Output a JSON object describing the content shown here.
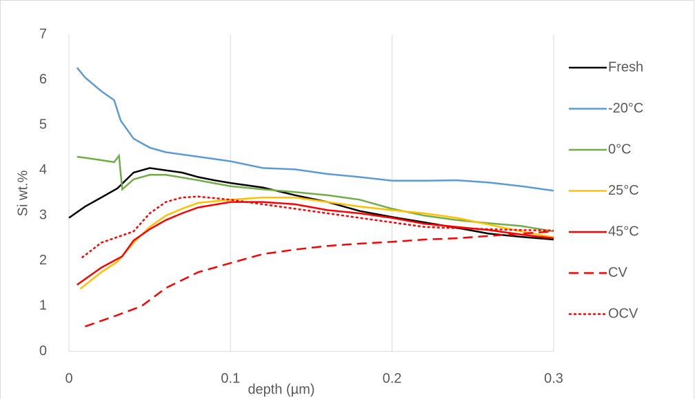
{
  "chart_data": {
    "type": "line",
    "x_label": "depth (µm)",
    "y_label": "Si wt.%",
    "xlim": [
      0,
      0.3
    ],
    "xticks": [
      0,
      0.1,
      0.2,
      0.3
    ],
    "ylim": [
      0,
      7
    ],
    "yticks": [
      0,
      1,
      2,
      3,
      4,
      5,
      6,
      7
    ],
    "grid": "x",
    "legend": "right",
    "series": [
      {
        "name": "Fresh",
        "color": "#000000",
        "dash": "solid",
        "x": [
          0,
          0.01,
          0.02,
          0.03,
          0.04,
          0.05,
          0.06,
          0.07,
          0.08,
          0.09,
          0.1,
          0.12,
          0.14,
          0.16,
          0.18,
          0.2,
          0.22,
          0.24,
          0.26,
          0.28,
          0.3
        ],
        "values": [
          2.95,
          3.2,
          3.4,
          3.6,
          3.95,
          4.05,
          4.0,
          3.95,
          3.85,
          3.78,
          3.72,
          3.62,
          3.45,
          3.3,
          3.1,
          2.97,
          2.85,
          2.73,
          2.6,
          2.53,
          2.47
        ]
      },
      {
        "name": "-20°C",
        "color": "#5b9bd5",
        "dash": "solid",
        "x": [
          0.005,
          0.01,
          0.02,
          0.028,
          0.032,
          0.04,
          0.05,
          0.06,
          0.08,
          0.1,
          0.12,
          0.14,
          0.16,
          0.18,
          0.2,
          0.22,
          0.24,
          0.26,
          0.28,
          0.3
        ],
        "values": [
          6.27,
          6.05,
          5.75,
          5.55,
          5.1,
          4.7,
          4.5,
          4.4,
          4.3,
          4.2,
          4.05,
          4.02,
          3.92,
          3.85,
          3.77,
          3.77,
          3.78,
          3.73,
          3.65,
          3.55
        ]
      },
      {
        "name": "0°C",
        "color": "#70ad47",
        "dash": "solid",
        "x": [
          0.005,
          0.015,
          0.028,
          0.031,
          0.033,
          0.04,
          0.05,
          0.06,
          0.08,
          0.1,
          0.12,
          0.14,
          0.16,
          0.18,
          0.2,
          0.22,
          0.24,
          0.26,
          0.28,
          0.3
        ],
        "values": [
          4.3,
          4.25,
          4.18,
          4.32,
          3.58,
          3.8,
          3.9,
          3.9,
          3.78,
          3.65,
          3.58,
          3.52,
          3.45,
          3.35,
          3.15,
          3.0,
          2.9,
          2.83,
          2.77,
          2.65
        ]
      },
      {
        "name": "25°C",
        "color": "#ffc000",
        "dash": "solid",
        "x": [
          0.007,
          0.02,
          0.03,
          0.04,
          0.05,
          0.06,
          0.07,
          0.08,
          0.1,
          0.12,
          0.14,
          0.16,
          0.18,
          0.2,
          0.22,
          0.24,
          0.26,
          0.28,
          0.3
        ],
        "values": [
          1.38,
          1.75,
          1.98,
          2.4,
          2.75,
          3.0,
          3.15,
          3.28,
          3.35,
          3.4,
          3.4,
          3.3,
          3.2,
          3.12,
          3.05,
          2.95,
          2.8,
          2.65,
          2.52
        ]
      },
      {
        "name": "45°C",
        "color": "#ff0000",
        "dash": "solid",
        "x": [
          0.005,
          0.02,
          0.033,
          0.04,
          0.05,
          0.06,
          0.07,
          0.08,
          0.1,
          0.12,
          0.14,
          0.16,
          0.18,
          0.2,
          0.22,
          0.24,
          0.26,
          0.28,
          0.3
        ],
        "values": [
          1.47,
          1.85,
          2.1,
          2.45,
          2.7,
          2.9,
          3.05,
          3.18,
          3.3,
          3.3,
          3.25,
          3.12,
          3.05,
          2.95,
          2.82,
          2.75,
          2.68,
          2.58,
          2.5
        ]
      },
      {
        "name": "CV",
        "color": "#ff0000",
        "dash": "dash",
        "x": [
          0.01,
          0.03,
          0.045,
          0.06,
          0.08,
          0.1,
          0.12,
          0.14,
          0.16,
          0.18,
          0.2,
          0.22,
          0.24,
          0.26,
          0.28,
          0.3
        ],
        "values": [
          0.55,
          0.8,
          1.0,
          1.4,
          1.75,
          1.95,
          2.15,
          2.25,
          2.33,
          2.38,
          2.42,
          2.47,
          2.5,
          2.55,
          2.6,
          2.65
        ]
      },
      {
        "name": "OCV",
        "color": "#ff0000",
        "dash": "dot",
        "x": [
          0.008,
          0.02,
          0.04,
          0.05,
          0.06,
          0.07,
          0.08,
          0.1,
          0.12,
          0.14,
          0.16,
          0.18,
          0.2,
          0.22,
          0.24,
          0.26,
          0.28,
          0.3
        ],
        "values": [
          2.07,
          2.4,
          2.65,
          3.05,
          3.3,
          3.4,
          3.42,
          3.35,
          3.25,
          3.15,
          3.05,
          2.95,
          2.85,
          2.75,
          2.72,
          2.7,
          2.68,
          2.67
        ]
      }
    ]
  }
}
